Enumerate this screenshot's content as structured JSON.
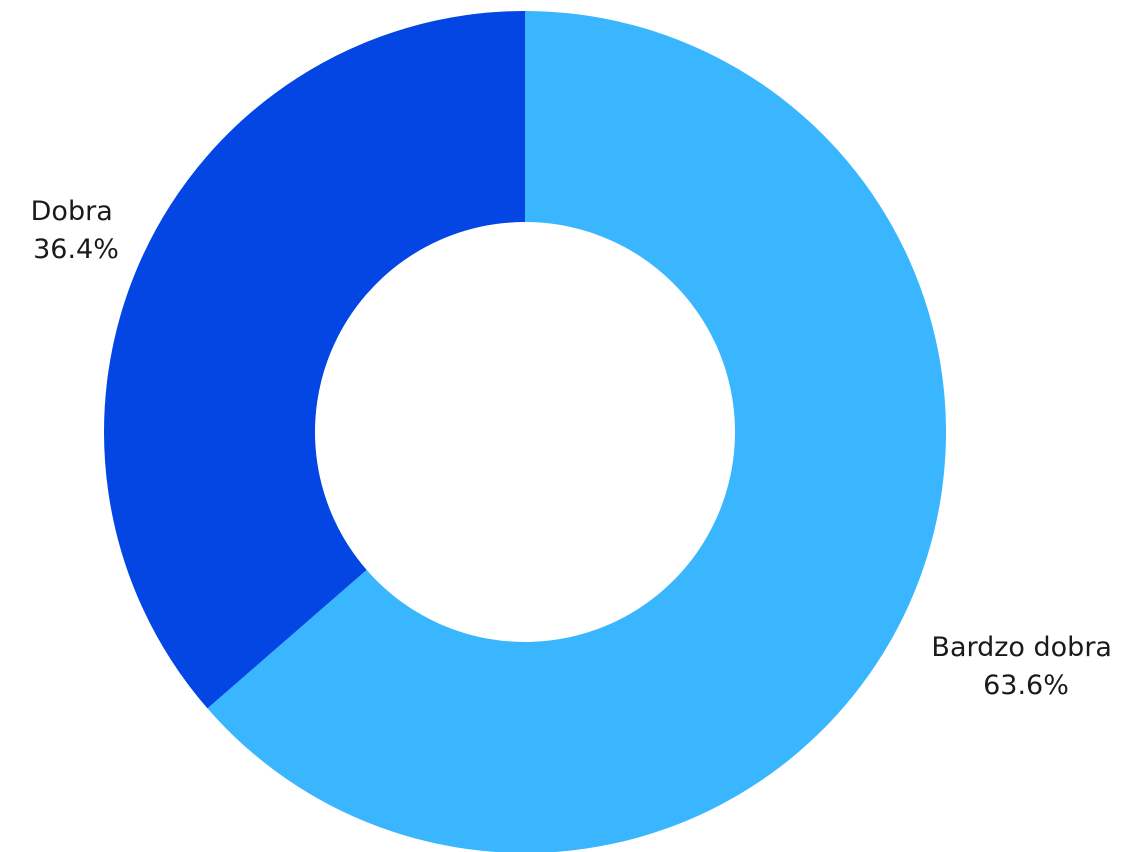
{
  "chart_data": {
    "type": "pie",
    "donut": true,
    "slices": [
      {
        "label": "Bardzo dobra",
        "value": 63.6,
        "value_label": "63.6%",
        "color": "#3ab6ff"
      },
      {
        "label": "Dobra",
        "value": 36.4,
        "value_label": "36.4%",
        "color": "#0446e3"
      }
    ],
    "start": "top",
    "direction": "clockwise"
  }
}
